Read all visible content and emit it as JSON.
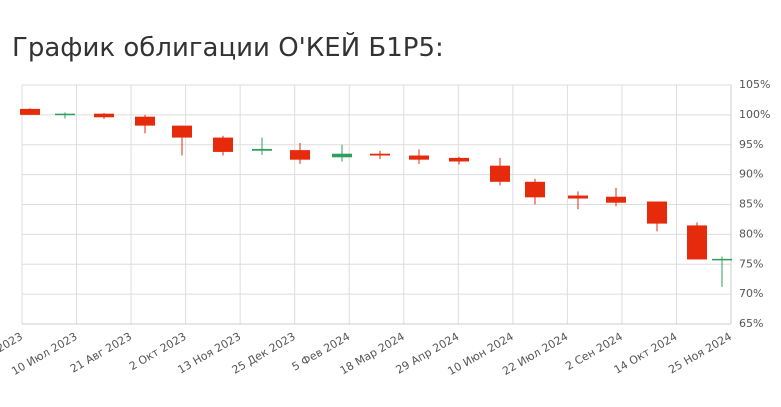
{
  "chart_data": {
    "type": "candlestick",
    "title": "График облигации О'КЕЙ Б1Р5:",
    "xticks": [
      "2023",
      "10 Июл 2023",
      "21 Авг 2023",
      "2 Окт 2023",
      "13 Ноя 2023",
      "25 Дек 2023",
      "5 Фев 2024",
      "18 Мар 2024",
      "29 Апр 2024",
      "10 Июн 2024",
      "22 Июл 2024",
      "2 Сен 2024",
      "14 Окт 2024",
      "25 Ноя 2024"
    ],
    "open": [
      101,
      100.1,
      100.2,
      99.7,
      98.2,
      96.2,
      94.0,
      94.1,
      92.9,
      93.5,
      93.2,
      92.8,
      91.5,
      88.8,
      86.5,
      86.3,
      85.5,
      81.5,
      75.7
    ],
    "high": [
      101.1,
      100.4,
      100.3,
      100.0,
      98.2,
      96.5,
      96.2,
      95.3,
      95.0,
      94.0,
      94.2,
      93.0,
      92.8,
      89.3,
      87.2,
      87.8,
      85.5,
      82.0,
      76.3
    ],
    "low": [
      100,
      99.4,
      99.3,
      96.9,
      93.2,
      93.2,
      93.3,
      91.8,
      92.2,
      92.6,
      91.8,
      91.7,
      88.2,
      85.0,
      84.2,
      84.7,
      80.5,
      75.8,
      71.2
    ],
    "close": [
      100,
      100.2,
      99.6,
      98.2,
      96.2,
      93.8,
      94.3,
      92.5,
      93.5,
      93.2,
      92.5,
      92.2,
      88.8,
      86.2,
      86.0,
      85.3,
      81.8,
      75.8,
      75.9
    ],
    "up_color": "#2e9e5e",
    "down_color": "#e62b0c",
    "ylim": [
      65,
      105
    ],
    "yticks": [
      {
        "value": 65,
        "label": "65%"
      },
      {
        "value": 70,
        "label": "70%"
      },
      {
        "value": 75,
        "label": "75%"
      },
      {
        "value": 80,
        "label": "80%"
      },
      {
        "value": 85,
        "label": "85%"
      },
      {
        "value": 90,
        "label": "90%"
      },
      {
        "value": 95,
        "label": "95%"
      },
      {
        "value": 100,
        "label": "100%"
      },
      {
        "value": 105,
        "label": "105%"
      }
    ],
    "grid": true
  }
}
